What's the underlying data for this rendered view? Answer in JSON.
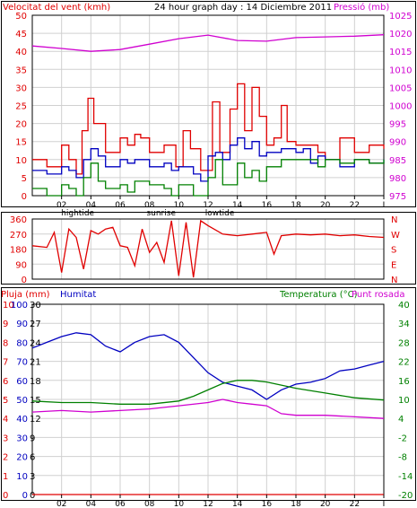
{
  "header": {
    "left_label": "Velocitat del vent (kmh)",
    "center_label": "24 hour graph day : 14 Diciembre 2011",
    "right_label": "Pressió (mb)"
  },
  "colors": {
    "wind_gust": "#e00000",
    "wind_avg": "#0000c0",
    "wind_green": "#008000",
    "pressure": "#d000d0",
    "direction": "#e00000",
    "rain": "#e00000",
    "humidity": "#0000c0",
    "temperature": "#008000",
    "dewpoint": "#d000d0",
    "grid": "#d0d0d0",
    "panel_border": "#000000"
  },
  "x_axis": {
    "tick_labels": [
      "02",
      "04",
      "06",
      "08",
      "10",
      "12",
      "14",
      "16",
      "18",
      "20",
      "22",
      "I"
    ],
    "events": [
      "hightide",
      "sunrise",
      "lowtide"
    ]
  },
  "chart_data": [
    {
      "type": "line",
      "panel": "wind_pressure",
      "x_range": [
        0,
        24
      ],
      "y_left": {
        "label": "Velocitat del vent (kmh)",
        "lim": [
          0,
          50
        ],
        "ticks": [
          0,
          5,
          10,
          15,
          20,
          25,
          30,
          35,
          40,
          45,
          50
        ]
      },
      "y_right": {
        "label": "Pressió (mb)",
        "lim": [
          975,
          1025
        ],
        "ticks": [
          975,
          980,
          985,
          990,
          995,
          1000,
          1005,
          1010,
          1015,
          1020,
          1025
        ]
      },
      "series": [
        {
          "color_key": "wind_gust",
          "x": [
            0,
            1,
            2,
            2.5,
            3,
            3.4,
            3.8,
            4.2,
            5,
            6,
            6.5,
            7,
            7.4,
            8,
            9,
            9.8,
            10.3,
            10.8,
            11.5,
            12.3,
            12.8,
            13.5,
            14,
            14.5,
            15,
            15.5,
            16,
            16.5,
            17,
            17.4,
            18,
            19,
            19.5,
            20,
            21,
            22,
            23,
            24
          ],
          "values": [
            10,
            8,
            14,
            10,
            6,
            18,
            27,
            20,
            12,
            16,
            14,
            17,
            16,
            12,
            14,
            8,
            18,
            13,
            7,
            26,
            12,
            24,
            31,
            18,
            30,
            22,
            14,
            16,
            25,
            15,
            14,
            14,
            12,
            10,
            16,
            12,
            14,
            13
          ]
        },
        {
          "color_key": "wind_avg",
          "x": [
            0,
            1,
            2,
            2.5,
            3,
            3.5,
            4,
            4.5,
            5,
            6,
            6.5,
            7,
            8,
            9,
            9.5,
            10,
            11,
            11.5,
            12,
            12.5,
            13,
            13.5,
            14,
            14.5,
            15,
            15.5,
            16,
            17,
            18,
            18.5,
            19,
            19.5,
            20,
            21,
            22,
            23,
            24
          ],
          "values": [
            7,
            6,
            8,
            7,
            5,
            10,
            13,
            11,
            8,
            10,
            9,
            10,
            8,
            9,
            7,
            8,
            6,
            4,
            11,
            12,
            10,
            14,
            16,
            13,
            15,
            11,
            12,
            13,
            12,
            13,
            9,
            11,
            10,
            8,
            10,
            9,
            10
          ]
        },
        {
          "color_key": "wind_green",
          "x": [
            0,
            1,
            2,
            2.5,
            3,
            3.5,
            4,
            4.5,
            5,
            6,
            6.5,
            7,
            8,
            9,
            9.5,
            10,
            11,
            12,
            12.5,
            13,
            14,
            14.5,
            15,
            15.5,
            16,
            17,
            18,
            19,
            19.5,
            20,
            21,
            22,
            23,
            24
          ],
          "values": [
            2,
            0,
            3,
            2,
            0,
            5,
            9,
            4,
            2,
            3,
            1,
            4,
            3,
            2,
            0,
            3,
            0,
            5,
            10,
            3,
            9,
            5,
            7,
            4,
            8,
            10,
            10,
            10,
            8,
            10,
            9,
            10,
            9,
            10
          ]
        },
        {
          "color_key": "pressure",
          "axis": "right",
          "x": [
            0,
            2,
            4,
            6,
            8,
            10,
            12,
            14,
            16,
            18,
            20,
            22,
            24
          ],
          "values": [
            1016.5,
            1015.8,
            1015.0,
            1015.5,
            1017.0,
            1018.5,
            1019.5,
            1018.0,
            1017.8,
            1018.8,
            1019.0,
            1019.2,
            1019.6
          ]
        }
      ]
    },
    {
      "type": "line",
      "panel": "wind_direction",
      "x_range": [
        0,
        24
      ],
      "y_left": {
        "lim": [
          0,
          360
        ],
        "ticks": [
          0,
          90,
          180,
          270,
          360
        ]
      },
      "y_right_labels": [
        "N",
        "W",
        "S",
        "E",
        "N"
      ],
      "series": [
        {
          "color_key": "direction",
          "x": [
            0,
            1,
            1.5,
            2,
            2.5,
            3,
            3.5,
            4,
            4.5,
            5,
            5.5,
            6,
            6.5,
            7,
            7.5,
            8,
            8.5,
            9,
            9.5,
            10,
            10.5,
            11,
            11.5,
            12,
            13,
            14,
            15,
            16,
            16.5,
            17,
            18,
            19,
            20,
            21,
            22,
            23,
            24
          ],
          "values": [
            200,
            190,
            280,
            40,
            300,
            250,
            60,
            290,
            270,
            300,
            310,
            200,
            190,
            80,
            300,
            160,
            220,
            100,
            350,
            20,
            340,
            10,
            350,
            320,
            270,
            260,
            270,
            280,
            150,
            260,
            270,
            265,
            270,
            260,
            265,
            255,
            250
          ]
        }
      ]
    },
    {
      "type": "line",
      "panel": "rain_humidity_temperature",
      "x_range": [
        0,
        24
      ],
      "y_left_rain": {
        "label": "Pluja (mm)",
        "lim": [
          0,
          10
        ],
        "ticks": [
          0,
          1,
          2,
          3,
          4,
          5,
          6,
          7,
          8,
          9,
          10
        ]
      },
      "y_left_humidity": {
        "label": "Humitat",
        "lim": [
          0,
          100
        ],
        "ticks": [
          0,
          10,
          20,
          30,
          40,
          50,
          60,
          70,
          80,
          90,
          100
        ]
      },
      "y_left_temp": {
        "lim": [
          0,
          30
        ],
        "ticks": [
          0,
          3,
          6,
          9,
          12,
          15,
          18,
          21,
          24,
          27,
          30
        ]
      },
      "y_right": {
        "label": "Temperatura (°C)",
        "label2": "Punt rosada",
        "lim": [
          -20,
          40
        ],
        "ticks": [
          -20,
          -14,
          -8,
          -2,
          4,
          10,
          16,
          22,
          28,
          34,
          40
        ]
      },
      "series": [
        {
          "name": "Pluja (mm)",
          "color_key": "rain",
          "axis": "rain",
          "x": [
            0,
            24
          ],
          "values": [
            0,
            0
          ]
        },
        {
          "name": "Humitat",
          "color_key": "humidity",
          "axis": "humidity",
          "x": [
            0,
            1,
            2,
            3,
            4,
            5,
            6,
            7,
            8,
            9,
            10,
            11,
            12,
            13,
            14,
            15,
            16,
            17,
            18,
            19,
            20,
            21,
            22,
            23,
            24
          ],
          "values": [
            77,
            80,
            83,
            85,
            84,
            78,
            75,
            80,
            83,
            84,
            80,
            72,
            64,
            59,
            57,
            55,
            50,
            55,
            58,
            59,
            61,
            65,
            66,
            68,
            70
          ]
        },
        {
          "name": "Temperatura (°C)",
          "color_key": "temperature",
          "axis": "right",
          "x": [
            0,
            2,
            4,
            6,
            8,
            10,
            11,
            12,
            13,
            14,
            15,
            16,
            17,
            18,
            20,
            22,
            24
          ],
          "values": [
            9.5,
            9,
            9,
            8.5,
            8.5,
            9.5,
            11,
            13,
            15,
            16,
            16,
            15.5,
            14.5,
            13.5,
            12,
            10.5,
            9.8
          ]
        },
        {
          "name": "Punt rosada",
          "color_key": "dewpoint",
          "axis": "right",
          "x": [
            0,
            2,
            4,
            6,
            8,
            10,
            12,
            13,
            14,
            15,
            16,
            17,
            18,
            20,
            22,
            24
          ],
          "values": [
            6,
            6.5,
            6,
            6.5,
            7,
            8,
            9,
            10,
            9,
            8.5,
            8,
            5.5,
            5,
            5,
            4.5,
            4
          ]
        }
      ]
    }
  ],
  "panel3": {
    "rain_label": "Pluja (mm)",
    "humidity_label": "Humitat",
    "temp_label": "Temperatura (°C)",
    "dew_label": "Punt rosada"
  }
}
